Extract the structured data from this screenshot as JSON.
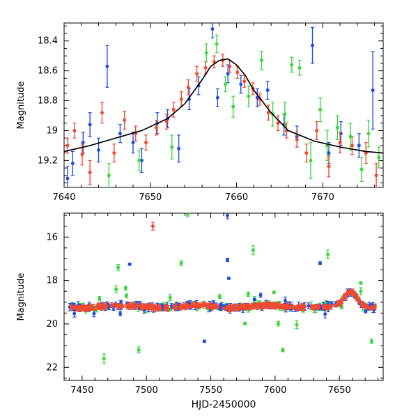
{
  "colors": {
    "blue": "#1f4fe0",
    "red": "#f24a31",
    "green": "#39d73a",
    "model": "#000000",
    "axis": "#000000"
  },
  "chart_data": [
    {
      "type": "scatter",
      "title": "",
      "xlabel": "",
      "ylabel": "Magnitude",
      "xlim": [
        7640,
        7677
      ],
      "ylim": [
        19.38,
        18.28
      ],
      "xticks": [
        7640,
        7650,
        7660,
        7670
      ],
      "xtick_labels": [
        "7640",
        "7650",
        "7660",
        "7670"
      ],
      "yticks": [
        18.4,
        18.6,
        18.8,
        19.0,
        19.2
      ],
      "ytick_labels": [
        "18.4",
        "18.6",
        "18.8",
        "19",
        "19.2"
      ],
      "grid": false,
      "legend": "none",
      "model": {
        "x": [
          7640,
          7643,
          7646,
          7649,
          7652,
          7654,
          7656,
          7657,
          7658,
          7659,
          7660,
          7661,
          7662,
          7664,
          7666,
          7669,
          7672,
          7675,
          7677
        ],
        "y": [
          19.14,
          19.1,
          19.05,
          19.0,
          18.92,
          18.82,
          18.66,
          18.57,
          18.53,
          18.52,
          18.56,
          18.63,
          18.73,
          18.88,
          19.0,
          19.07,
          19.11,
          19.14,
          19.15
        ]
      },
      "series": [
        {
          "color_key": "blue",
          "points": [
            {
              "x": 7640.4,
              "y": 19.32,
              "err": 0.08
            },
            {
              "x": 7641.0,
              "y": 19.22,
              "err": 0.08
            },
            {
              "x": 7642.2,
              "y": 19.08,
              "err": 0.07
            },
            {
              "x": 7643.0,
              "y": 18.96,
              "err": 0.08
            },
            {
              "x": 7644.0,
              "y": 19.13,
              "err": 0.08
            },
            {
              "x": 7645.0,
              "y": 18.57,
              "err": 0.14
            },
            {
              "x": 7646.5,
              "y": 19.02,
              "err": 0.06
            },
            {
              "x": 7648.0,
              "y": 19.08,
              "err": 0.07
            },
            {
              "x": 7649.0,
              "y": 19.2,
              "err": 0.08
            },
            {
              "x": 7650.8,
              "y": 18.95,
              "err": 0.07
            },
            {
              "x": 7652.0,
              "y": 18.92,
              "err": 0.06
            },
            {
              "x": 7653.3,
              "y": 19.12,
              "err": 0.09
            },
            {
              "x": 7654.5,
              "y": 18.79,
              "err": 0.07
            },
            {
              "x": 7655.6,
              "y": 18.7,
              "err": 0.06
            },
            {
              "x": 7657.2,
              "y": 18.32,
              "err": 0.06
            },
            {
              "x": 7657.8,
              "y": 18.78,
              "err": 0.06
            },
            {
              "x": 7659.0,
              "y": 18.62,
              "err": 0.06
            },
            {
              "x": 7660.5,
              "y": 18.69,
              "err": 0.06
            },
            {
              "x": 7662.4,
              "y": 18.78,
              "err": 0.06
            },
            {
              "x": 7663.6,
              "y": 18.73,
              "err": 0.06
            },
            {
              "x": 7665.5,
              "y": 18.96,
              "err": 0.07
            },
            {
              "x": 7667.0,
              "y": 19.04,
              "err": 0.07
            },
            {
              "x": 7668.8,
              "y": 18.43,
              "err": 0.12
            },
            {
              "x": 7670.7,
              "y": 19.15,
              "err": 0.07
            },
            {
              "x": 7672.1,
              "y": 19.02,
              "err": 0.08
            },
            {
              "x": 7674.2,
              "y": 19.1,
              "err": 0.08
            },
            {
              "x": 7675.8,
              "y": 18.73,
              "err": 0.26
            }
          ]
        },
        {
          "color_key": "red",
          "points": [
            {
              "x": 7640.4,
              "y": 19.1,
              "err": 0.05
            },
            {
              "x": 7641.2,
              "y": 19.0,
              "err": 0.05
            },
            {
              "x": 7642.1,
              "y": 19.16,
              "err": 0.07
            },
            {
              "x": 7643.0,
              "y": 19.28,
              "err": 0.08
            },
            {
              "x": 7644.4,
              "y": 18.88,
              "err": 0.07
            },
            {
              "x": 7645.8,
              "y": 19.15,
              "err": 0.06
            },
            {
              "x": 7647.0,
              "y": 18.93,
              "err": 0.06
            },
            {
              "x": 7648.3,
              "y": 19.02,
              "err": 0.05
            },
            {
              "x": 7649.5,
              "y": 19.08,
              "err": 0.05
            },
            {
              "x": 7650.7,
              "y": 18.98,
              "err": 0.05
            },
            {
              "x": 7651.9,
              "y": 18.94,
              "err": 0.05
            },
            {
              "x": 7652.7,
              "y": 18.86,
              "err": 0.05
            },
            {
              "x": 7653.6,
              "y": 18.79,
              "err": 0.05
            },
            {
              "x": 7654.4,
              "y": 18.71,
              "err": 0.05
            },
            {
              "x": 7655.4,
              "y": 18.62,
              "err": 0.05
            },
            {
              "x": 7656.4,
              "y": 18.58,
              "err": 0.04
            },
            {
              "x": 7657.4,
              "y": 18.54,
              "err": 0.04
            },
            {
              "x": 7658.4,
              "y": 18.53,
              "err": 0.04
            },
            {
              "x": 7659.2,
              "y": 18.57,
              "err": 0.04
            },
            {
              "x": 7660.1,
              "y": 18.61,
              "err": 0.04
            },
            {
              "x": 7660.9,
              "y": 18.67,
              "err": 0.04
            },
            {
              "x": 7661.9,
              "y": 18.72,
              "err": 0.04
            },
            {
              "x": 7662.7,
              "y": 18.79,
              "err": 0.04
            },
            {
              "x": 7663.7,
              "y": 18.88,
              "err": 0.05
            },
            {
              "x": 7664.8,
              "y": 18.95,
              "err": 0.05
            },
            {
              "x": 7665.8,
              "y": 19.0,
              "err": 0.05
            },
            {
              "x": 7667.0,
              "y": 19.06,
              "err": 0.05
            },
            {
              "x": 7668.1,
              "y": 19.15,
              "err": 0.06
            },
            {
              "x": 7669.3,
              "y": 19.0,
              "err": 0.06
            },
            {
              "x": 7670.7,
              "y": 19.24,
              "err": 0.07
            },
            {
              "x": 7672.0,
              "y": 19.08,
              "err": 0.07
            },
            {
              "x": 7673.4,
              "y": 19.1,
              "err": 0.06
            },
            {
              "x": 7675.0,
              "y": 19.15,
              "err": 0.07
            },
            {
              "x": 7676.2,
              "y": 19.3,
              "err": 0.08
            }
          ]
        },
        {
          "color_key": "green",
          "points": [
            {
              "x": 7645.2,
              "y": 19.3,
              "err": 0.08
            },
            {
              "x": 7648.7,
              "y": 19.2,
              "err": 0.07
            },
            {
              "x": 7652.5,
              "y": 19.11,
              "err": 0.08
            },
            {
              "x": 7656.5,
              "y": 18.48,
              "err": 0.06
            },
            {
              "x": 7657.7,
              "y": 18.42,
              "err": 0.06
            },
            {
              "x": 7658.7,
              "y": 18.69,
              "err": 0.05
            },
            {
              "x": 7659.6,
              "y": 18.84,
              "err": 0.07
            },
            {
              "x": 7661.4,
              "y": 18.77,
              "err": 0.07
            },
            {
              "x": 7662.9,
              "y": 18.53,
              "err": 0.06
            },
            {
              "x": 7664.2,
              "y": 18.89,
              "err": 0.08
            },
            {
              "x": 7665.6,
              "y": 18.89,
              "err": 0.08
            },
            {
              "x": 7666.4,
              "y": 18.56,
              "err": 0.05
            },
            {
              "x": 7667.3,
              "y": 18.58,
              "err": 0.05
            },
            {
              "x": 7668.6,
              "y": 19.2,
              "err": 0.12
            },
            {
              "x": 7669.7,
              "y": 18.86,
              "err": 0.08
            },
            {
              "x": 7670.5,
              "y": 19.1,
              "err": 0.1
            },
            {
              "x": 7671.7,
              "y": 18.98,
              "err": 0.08
            },
            {
              "x": 7673.2,
              "y": 19.04,
              "err": 0.09
            },
            {
              "x": 7674.5,
              "y": 19.26,
              "err": 0.08
            },
            {
              "x": 7675.3,
              "y": 19.02,
              "err": 0.09
            },
            {
              "x": 7676.5,
              "y": 19.18,
              "err": 0.07
            }
          ]
        }
      ]
    },
    {
      "type": "scatter",
      "title": "",
      "xlabel": "HJD-2450000",
      "ylabel": "Magnitude",
      "xlim": [
        7436,
        7684
      ],
      "ylim": [
        22.6,
        14.9
      ],
      "xticks": [
        7450,
        7500,
        7550,
        7600,
        7650
      ],
      "xtick_labels": [
        "7450",
        "7500",
        "7550",
        "7600",
        "7650"
      ],
      "yticks": [
        16,
        18,
        20,
        22
      ],
      "ytick_labels": [
        "16",
        "18",
        "20",
        "22"
      ],
      "grid": false,
      "legend": "none",
      "outliers": [
        {
          "series": "red",
          "x": 7505,
          "y": 15.5,
          "err": 0.18
        },
        {
          "series": "green",
          "x": 7532,
          "y": 14.95,
          "err": 0.12
        },
        {
          "series": "blue",
          "x": 7563,
          "y": 15.0,
          "err": 0.16
        },
        {
          "series": "blue",
          "x": 7563,
          "y": 17.05,
          "err": 0.08
        },
        {
          "series": "green",
          "x": 7583,
          "y": 16.6,
          "err": 0.2
        },
        {
          "series": "green",
          "x": 7641,
          "y": 16.8,
          "err": 0.2
        },
        {
          "series": "blue",
          "x": 7635,
          "y": 17.2,
          "err": 0.06
        },
        {
          "series": "green",
          "x": 7478,
          "y": 17.4,
          "err": 0.14
        },
        {
          "series": "green",
          "x": 7527,
          "y": 17.2,
          "err": 0.12
        },
        {
          "series": "green",
          "x": 7467,
          "y": 21.6,
          "err": 0.22
        },
        {
          "series": "green",
          "x": 7494,
          "y": 21.2,
          "err": 0.14
        },
        {
          "series": "blue",
          "x": 7487,
          "y": 17.25,
          "err": 0.05
        },
        {
          "series": "green",
          "x": 7606,
          "y": 21.2,
          "err": 0.08
        },
        {
          "series": "green",
          "x": 7675,
          "y": 20.8,
          "err": 0.1
        },
        {
          "series": "blue",
          "x": 7564,
          "y": 17.9,
          "err": 0.05
        },
        {
          "series": "blue",
          "x": 7545,
          "y": 20.8,
          "err": 0.05
        }
      ]
    }
  ]
}
